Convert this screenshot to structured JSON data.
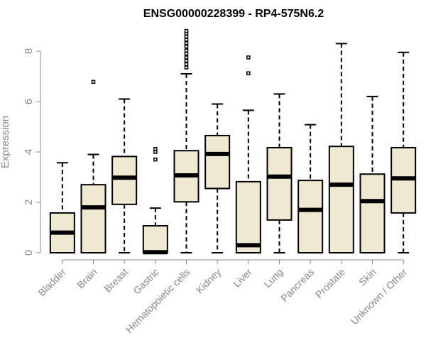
{
  "chart_data": {
    "type": "boxplot",
    "title": "ENSG00000228399 - RP4-575N6.2",
    "xlabel": "",
    "ylabel": "Expression",
    "ylim": [
      0,
      8.8
    ],
    "yticks": [
      0,
      2,
      4,
      6,
      8
    ],
    "colors": {
      "box_fill": "#efe9d1",
      "stroke": "#000000",
      "axis": "#888888"
    },
    "categories": [
      "Bladder",
      "Brain",
      "Breast",
      "Gastric",
      "Hematopoietic cells",
      "Kidney",
      "Liver",
      "Lung",
      "Pancreas",
      "Prostate",
      "Skin",
      "Unknown / Other"
    ],
    "boxes": [
      {
        "category": "Bladder",
        "min": 0,
        "q1": 0,
        "median": 0.8,
        "q3": 1.58,
        "max": 3.57,
        "outliers": []
      },
      {
        "category": "Brain",
        "min": 0,
        "q1": 0,
        "median": 1.8,
        "q3": 2.7,
        "max": 3.9,
        "outliers": [
          6.78
        ]
      },
      {
        "category": "Breast",
        "min": 0,
        "q1": 1.92,
        "median": 2.98,
        "q3": 3.82,
        "max": 6.1,
        "outliers": []
      },
      {
        "category": "Gastric",
        "min": 0,
        "q1": 0,
        "median": 0.02,
        "q3": 1.07,
        "max": 1.77,
        "outliers": [
          3.7,
          4.0,
          4.12
        ]
      },
      {
        "category": "Hematopoietic cells",
        "min": 0,
        "q1": 2.02,
        "median": 3.07,
        "q3": 4.05,
        "max": 7.1,
        "outliers": [
          7.35,
          7.48,
          7.62,
          7.75,
          7.9,
          8.02,
          8.18,
          8.32,
          8.45,
          8.58,
          8.7,
          8.8
        ]
      },
      {
        "category": "Kidney",
        "min": 0,
        "q1": 2.55,
        "median": 3.92,
        "q3": 4.65,
        "max": 5.9,
        "outliers": []
      },
      {
        "category": "Liver",
        "min": 0,
        "q1": 0,
        "median": 0.3,
        "q3": 2.82,
        "max": 5.65,
        "outliers": [
          7.12,
          7.75
        ]
      },
      {
        "category": "Lung",
        "min": 0,
        "q1": 1.3,
        "median": 3.02,
        "q3": 4.17,
        "max": 6.3,
        "outliers": []
      },
      {
        "category": "Pancreas",
        "min": 0,
        "q1": 0,
        "median": 1.7,
        "q3": 2.87,
        "max": 5.08,
        "outliers": []
      },
      {
        "category": "Prostate",
        "min": 0,
        "q1": 0,
        "median": 2.7,
        "q3": 4.22,
        "max": 8.3,
        "outliers": []
      },
      {
        "category": "Skin",
        "min": 0,
        "q1": 0,
        "median": 2.05,
        "q3": 3.12,
        "max": 6.2,
        "outliers": []
      },
      {
        "category": "Unknown / Other",
        "min": 0,
        "q1": 1.58,
        "median": 2.95,
        "q3": 4.17,
        "max": 7.95,
        "outliers": []
      }
    ]
  }
}
